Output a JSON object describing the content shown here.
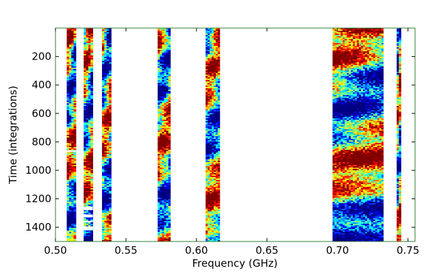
{
  "chart_data": {
    "type": "heatmap",
    "title": "",
    "xlabel": "Frequency (GHz)",
    "ylabel": "Time (integrations)",
    "xlim": [
      0.5,
      0.755
    ],
    "ylim": [
      1500,
      0
    ],
    "x_ticks": [
      0.5,
      0.55,
      0.6,
      0.65,
      0.7,
      0.75
    ],
    "x_tick_labels": [
      "0.50",
      "0.55",
      "0.60",
      "0.65",
      "0.70",
      "0.75"
    ],
    "y_ticks": [
      200,
      400,
      600,
      800,
      1000,
      1200,
      1400
    ],
    "y_tick_labels": [
      "200",
      "400",
      "600",
      "800",
      "1000",
      "1200",
      "1400"
    ],
    "colormap": "jet",
    "frame_color": "#2e7d32",
    "grid": false,
    "legend": "none",
    "bands": [
      {
        "x0": 0.508,
        "x1": 0.5145,
        "phase": 0.1
      },
      {
        "x0": 0.52,
        "x1": 0.5265,
        "phase": 0.9
      },
      {
        "x0": 0.533,
        "x1": 0.5395,
        "phase": 0.3
      },
      {
        "x0": 0.5725,
        "x1": 0.5815,
        "phase": 0.2
      },
      {
        "x0": 0.6065,
        "x1": 0.6165,
        "phase": 0.75
      },
      {
        "x0": 0.6965,
        "x1": 0.7325,
        "phase": 0.0
      },
      {
        "x0": 0.742,
        "x1": 0.745,
        "phase": 0.5
      }
    ],
    "masked_cells": [
      {
        "x0": 0.52,
        "x1": 0.5265,
        "y0": 1255,
        "y1": 1280
      },
      {
        "x0": 0.52,
        "x1": 0.5265,
        "y0": 1310,
        "y1": 1330
      },
      {
        "x0": 0.52,
        "x1": 0.5265,
        "y0": 1355,
        "y1": 1365
      },
      {
        "x0": 0.52,
        "x1": 0.5265,
        "y0": 1395,
        "y1": 1420
      },
      {
        "x0": 0.508,
        "x1": 0.5145,
        "y0": 860,
        "y1": 870
      }
    ]
  }
}
